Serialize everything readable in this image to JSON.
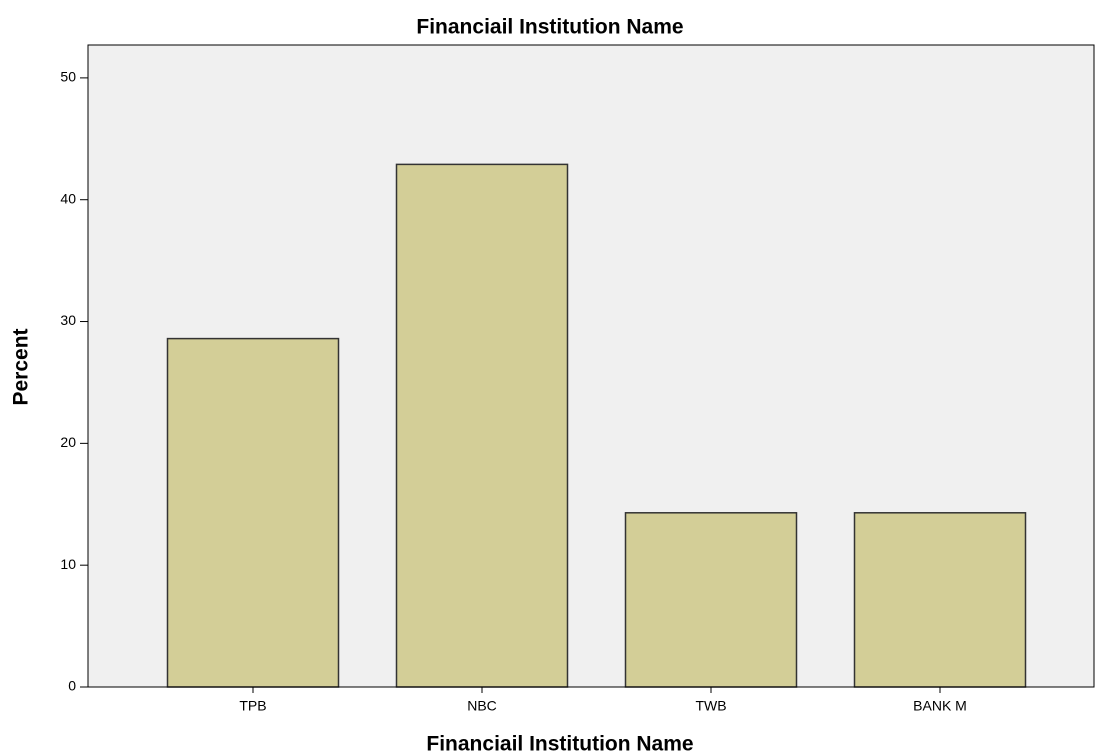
{
  "chart_data": {
    "type": "bar",
    "title": "Financiail Institution Name",
    "x_label": "Financiail Institution Name",
    "y_label": "Percent",
    "categories": [
      "TPB",
      "NBC",
      "TWB",
      "BANK M"
    ],
    "values": [
      28.6,
      42.9,
      14.3,
      14.3
    ],
    "color": "#d3ce97",
    "ylim": [
      0,
      52.7
    ],
    "yticks": [
      0,
      10,
      20,
      30,
      40,
      50
    ]
  }
}
